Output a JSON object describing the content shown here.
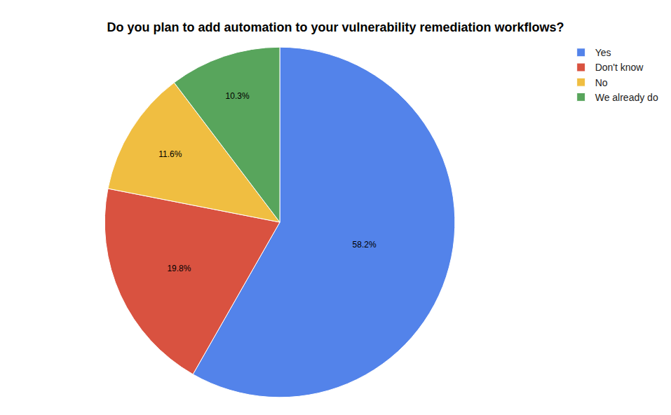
{
  "chart_data": {
    "type": "pie",
    "title": "Do you plan to add automation to your vulnerability remediation workflows?",
    "categories": [
      "Yes",
      "Don't know",
      "No",
      "We already do"
    ],
    "values": [
      58.2,
      19.8,
      11.6,
      10.3
    ],
    "value_labels": [
      "58.2%",
      "19.8%",
      "11.6%",
      "10.3%"
    ],
    "colors": [
      "#5383ea",
      "#d95240",
      "#f0be41",
      "#58a55c"
    ],
    "data_labels": true,
    "legend": "top-right"
  }
}
